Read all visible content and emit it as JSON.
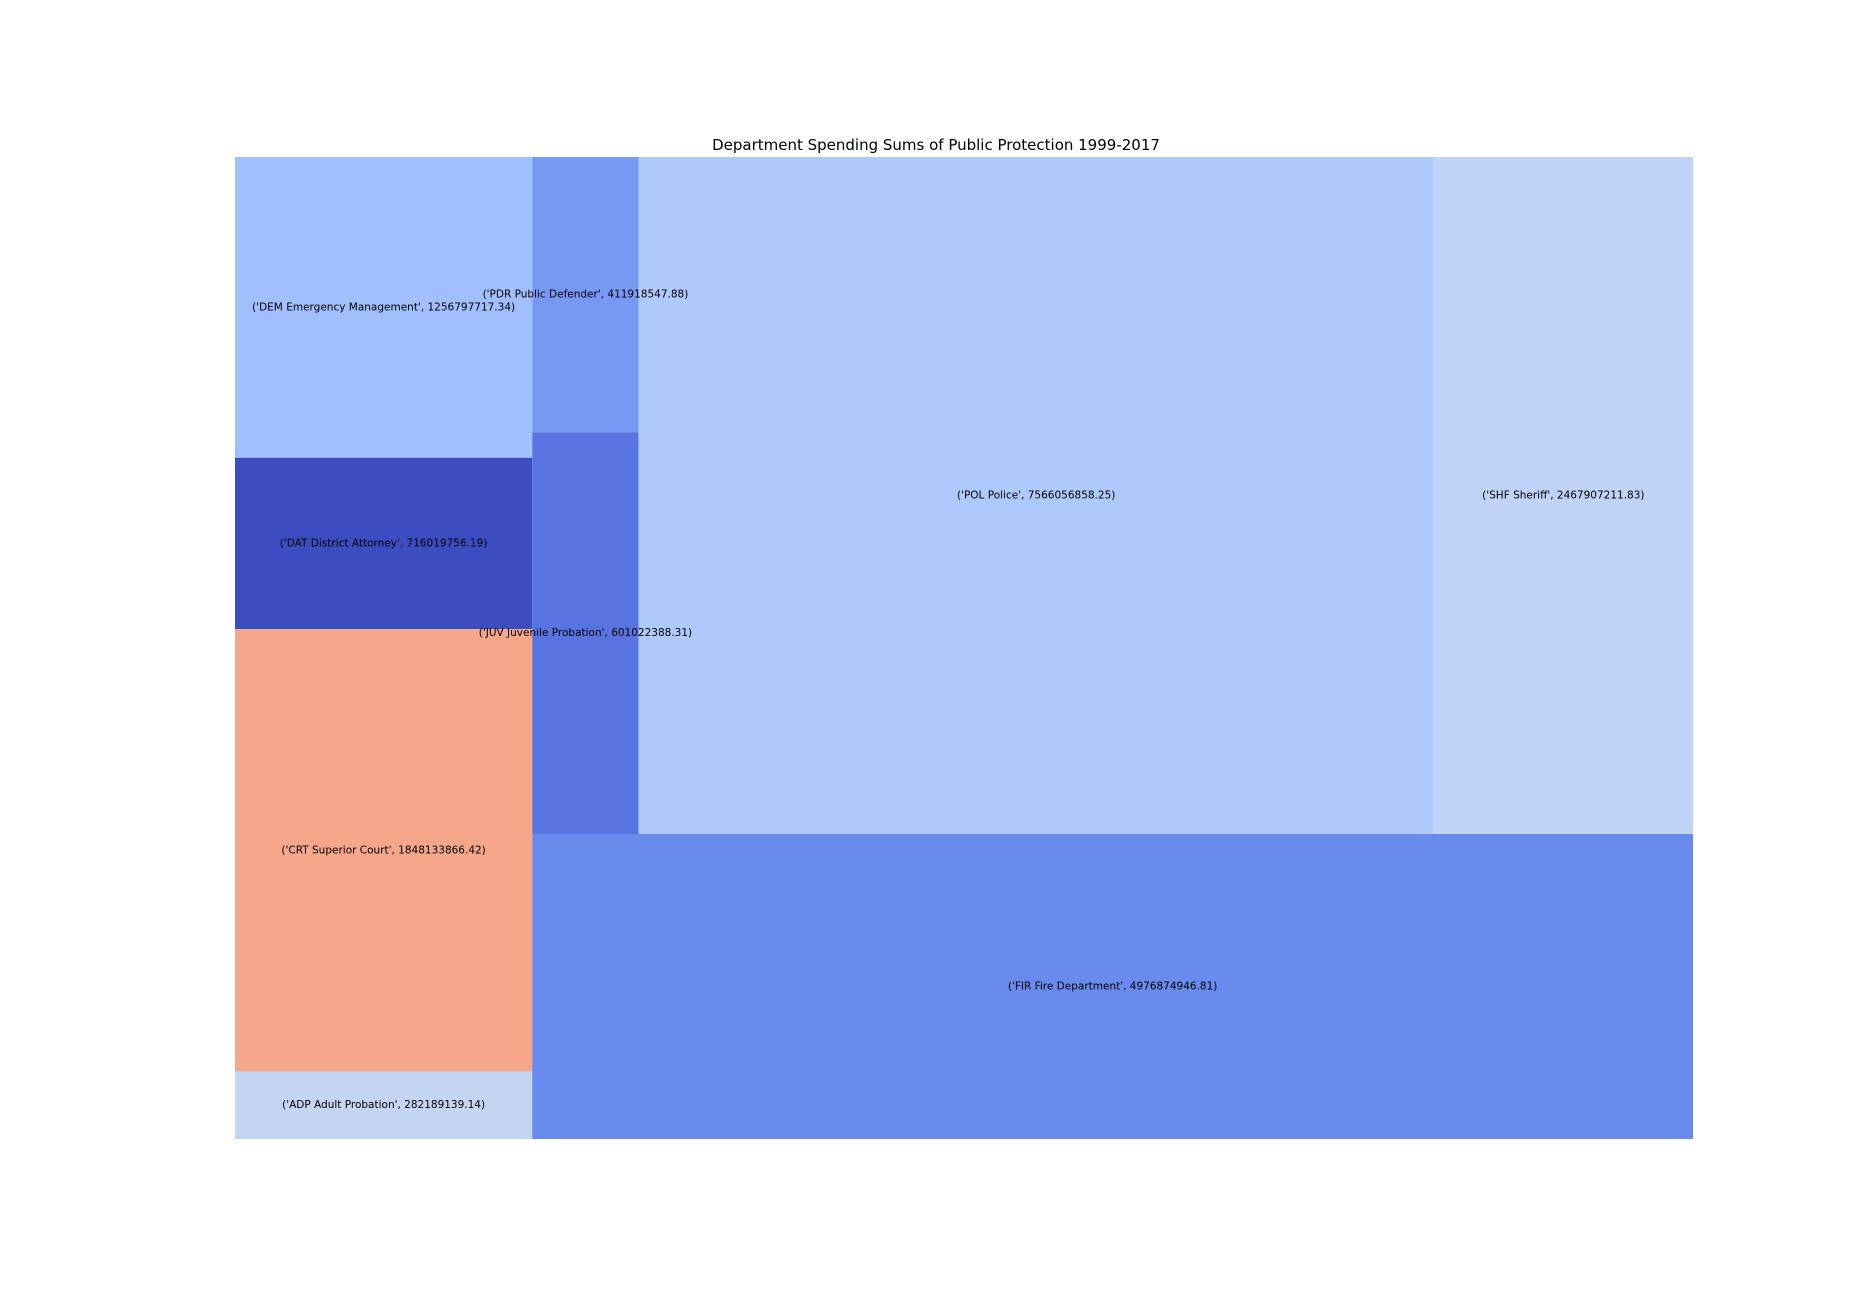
{
  "chart_data": {
    "type": "treemap",
    "title": "Department Spending Sums of Public Protection 1999-2017",
    "items": [
      {
        "name": "('DEM Emergency Management', 1256797717.34)",
        "department": "DEM Emergency Management",
        "value": 1256797717.34,
        "color": "#a1bffc"
      },
      {
        "name": "('DAT District Attorney', 716019756.19)",
        "department": "DAT District Attorney",
        "value": 716019756.19,
        "color": "#3c4dc1"
      },
      {
        "name": "('CRT Superior Court', 1848133866.42)",
        "department": "CRT Superior Court",
        "value": 1848133866.42,
        "color": "#f6a789"
      },
      {
        "name": "('ADP Adult Probation', 282189139.14)",
        "department": "ADP Adult Probation",
        "value": 282189139.14,
        "color": "#c4d5f2"
      },
      {
        "name": "('PDR Public Defender', 411918547.88)",
        "department": "PDR Public Defender",
        "value": 411918547.88,
        "color": "#7799f4"
      },
      {
        "name": "('JUV Juvenile Probation', 601022388.31)",
        "department": "JUV Juvenile Probation",
        "value": 601022388.31,
        "color": "#5874e1"
      },
      {
        "name": "('POL Police', 7566056858.25)",
        "department": "POL Police",
        "value": 7566056858.25,
        "color": "#aec9fb"
      },
      {
        "name": "('SHF Sheriff', 2467907211.83)",
        "department": "SHF Sheriff",
        "value": 2467907211.83,
        "color": "#bed3f5"
      },
      {
        "name": "('FIR Fire Department', 4976874946.81)",
        "department": "FIR Fire Department",
        "value": 4976874946.81,
        "color": "#698bee"
      }
    ]
  }
}
